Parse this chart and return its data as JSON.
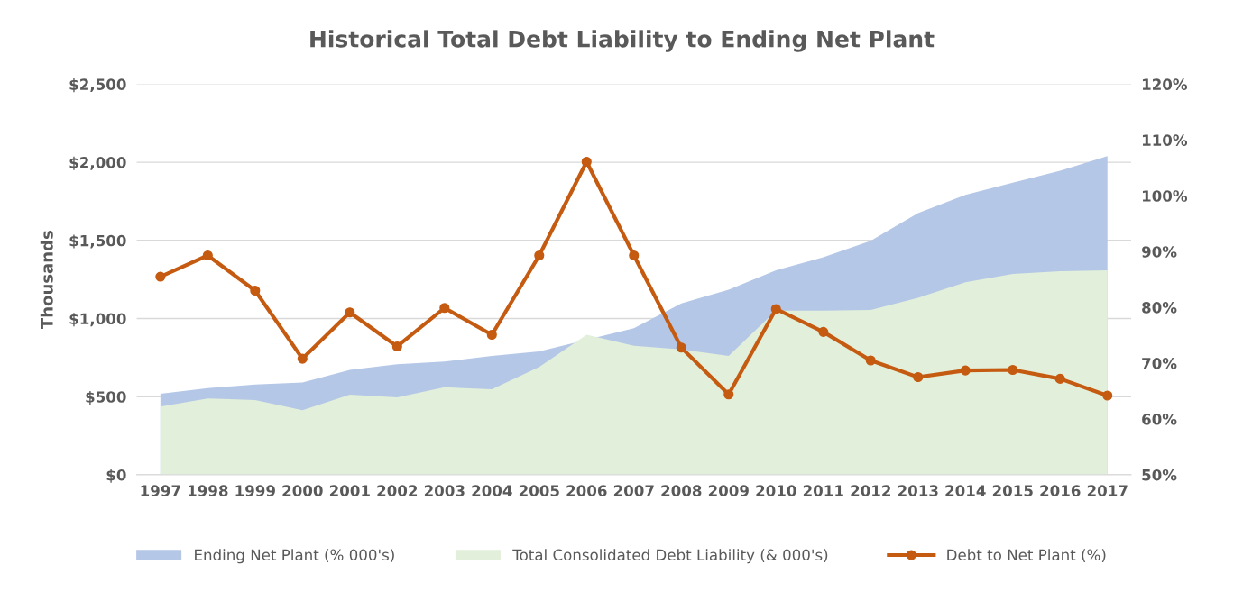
{
  "chart_data": {
    "type": "area",
    "title": "Historical Total Debt Liability to Ending Net Plant",
    "categories": [
      "1997",
      "1998",
      "1999",
      "2000",
      "2001",
      "2002",
      "2003",
      "2004",
      "2005",
      "2006",
      "2007",
      "2008",
      "2009",
      "2010",
      "2011",
      "2012",
      "2013",
      "2014",
      "2015",
      "2016",
      "2017"
    ],
    "series": [
      {
        "name": "Ending Net Plant (% 000's)",
        "color": "#b4c7e7",
        "values": [
          519,
          554,
          578,
          590,
          672,
          708,
          725,
          761,
          790,
          null,
          938,
          1097,
          1185,
          1309,
          1392,
          1498,
          1675,
          1792,
          1869,
          1946,
          2040
        ]
      },
      {
        "name": "Total Consolidated Debt Liability (& 000's)",
        "color": "#e2efda",
        "values": [
          436,
          489,
          478,
          413,
          513,
          495,
          560,
          548,
          690,
          896,
          825,
          802,
          761,
          1050,
          1050,
          1055,
          1132,
          1232,
          1285,
          1303,
          1309
        ]
      },
      {
        "name": "Debt to Net Plant (%)",
        "type": "line",
        "axis": "y2",
        "color": "#c55a11",
        "marker": "circle",
        "values": [
          85.5,
          89.3,
          83.0,
          70.8,
          79.1,
          73.0,
          79.9,
          75.1,
          89.3,
          106.1,
          89.3,
          72.8,
          64.4,
          79.7,
          75.6,
          70.5,
          67.5,
          68.7,
          68.8,
          67.2,
          64.2
        ]
      }
    ],
    "ylabel": "Thousands",
    "ylim": [
      0,
      2500
    ],
    "yticks": [
      {
        "value": 0,
        "label": "$0"
      },
      {
        "value": 500,
        "label": "$500"
      },
      {
        "value": 1000,
        "label": "$1,000"
      },
      {
        "value": 1500,
        "label": "$1,500"
      },
      {
        "value": 2000,
        "label": "$2,000"
      },
      {
        "value": 2500,
        "label": "$2,500"
      }
    ],
    "y2lim": [
      50,
      120
    ],
    "y2ticks": [
      {
        "value": 50,
        "label": "50%"
      },
      {
        "value": 60,
        "label": "60%"
      },
      {
        "value": 70,
        "label": "70%"
      },
      {
        "value": 80,
        "label": "80%"
      },
      {
        "value": 90,
        "label": "90%"
      },
      {
        "value": 100,
        "label": "100%"
      },
      {
        "value": 110,
        "label": "110%"
      },
      {
        "value": 120,
        "label": "120%"
      }
    ],
    "grid": "y",
    "legend": "bottom"
  }
}
